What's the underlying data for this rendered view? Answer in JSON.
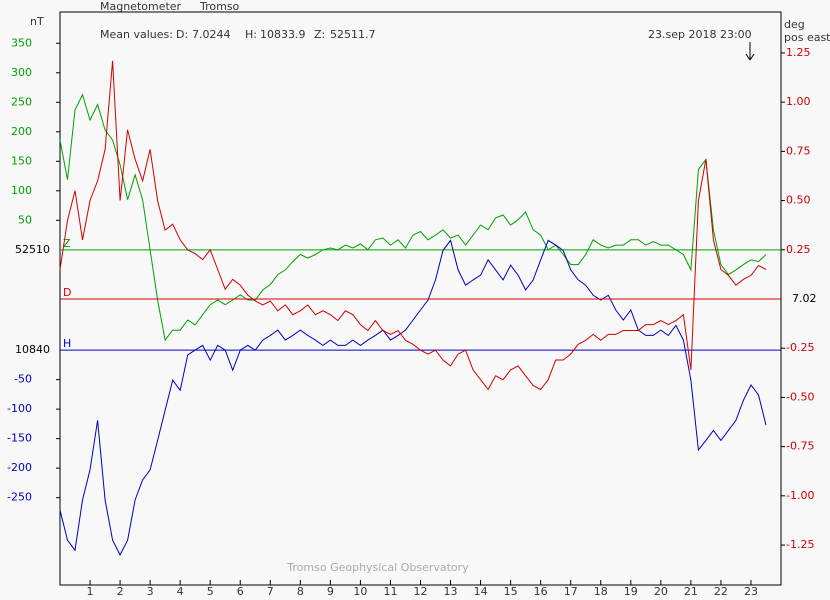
{
  "chart_data": {
    "type": "line",
    "title": "Magnetometer",
    "station": "Tromso",
    "y_label": "nT",
    "y2_label": [
      "deg",
      "pos east"
    ],
    "timestamp": "23.sep 2018 23:00",
    "footer": "Tromso Geophysical Observatory",
    "mean_values": {
      "label": "Mean values:",
      "items": [
        {
          "name": "D:",
          "value": 7.0244
        },
        {
          "name": "H:",
          "value": 10833.9
        },
        {
          "name": "Z:",
          "value": 52511.7
        }
      ]
    },
    "xlim": [
      0,
      24
    ],
    "xticks": [
      1,
      2,
      3,
      4,
      5,
      6,
      7,
      8,
      9,
      10,
      11,
      12,
      13,
      14,
      15,
      16,
      17,
      18,
      19,
      20,
      21,
      22,
      23
    ],
    "x": [
      0,
      0.25,
      0.5,
      0.75,
      1,
      1.25,
      1.5,
      1.75,
      2,
      2.25,
      2.5,
      2.75,
      3,
      3.25,
      3.5,
      3.75,
      4,
      4.25,
      4.5,
      4.75,
      5,
      5.25,
      5.5,
      5.75,
      6,
      6.25,
      6.5,
      6.75,
      7,
      7.25,
      7.5,
      7.75,
      8,
      8.25,
      8.5,
      8.75,
      9,
      9.25,
      9.5,
      9.75,
      10,
      10.25,
      10.5,
      10.75,
      11,
      11.25,
      11.5,
      11.75,
      12,
      12.25,
      12.5,
      12.75,
      13,
      13.25,
      13.5,
      13.75,
      14,
      14.25,
      14.5,
      14.75,
      15,
      15.25,
      15.5,
      15.75,
      16,
      16.25,
      16.5,
      16.75,
      17,
      17.25,
      17.5,
      17.75,
      18,
      18.25,
      18.5,
      18.75,
      19,
      19.25,
      19.5,
      19.75,
      20,
      20.25,
      20.5,
      20.75,
      21,
      21.25,
      21.5,
      21.75,
      22,
      22.25,
      22.5,
      22.75,
      23,
      23.25,
      23.5
    ],
    "series": [
      {
        "name": "Z",
        "color": "#00a000",
        "axis": "y",
        "baseline": 52510,
        "ylim": [
          -568,
          403
        ],
        "yticks": [
          50,
          100,
          150,
          200,
          250,
          300,
          350
        ],
        "values": [
          186,
          119,
          237,
          263,
          220,
          246,
          203,
          186,
          144,
          85,
          127,
          85,
          0,
          -85,
          -153,
          -136,
          -136,
          -119,
          -127,
          -110,
          -93,
          -85,
          -93,
          -85,
          -76,
          -85,
          -85,
          -68,
          -59,
          -42,
          -34,
          -20,
          -8,
          -14,
          -8,
          0,
          3,
          0,
          8,
          3,
          10,
          0,
          17,
          20,
          8,
          17,
          3,
          25,
          31,
          17,
          25,
          34,
          20,
          25,
          8,
          25,
          42,
          34,
          54,
          59,
          42,
          51,
          64,
          34,
          25,
          0,
          8,
          -8,
          -25,
          -25,
          -8,
          17,
          8,
          3,
          8,
          8,
          17,
          17,
          8,
          14,
          8,
          8,
          0,
          -8,
          -34,
          136,
          153,
          34,
          -25,
          -42,
          -34,
          -25,
          -17,
          -20,
          -8
        ]
      },
      {
        "name": "H",
        "color": "#0000c0",
        "axis": "y",
        "baseline": 10840,
        "ylim": [
          -398,
          573
        ],
        "yticks": [
          -50,
          -100,
          -150,
          -200,
          -250
        ],
        "values": [
          -271,
          -322,
          -339,
          -254,
          -203,
          -119,
          -254,
          -322,
          -347,
          -322,
          -254,
          -220,
          -203,
          -153,
          -102,
          -51,
          -68,
          -8,
          0,
          8,
          -17,
          8,
          0,
          -34,
          0,
          8,
          0,
          17,
          25,
          34,
          17,
          25,
          34,
          25,
          17,
          8,
          17,
          8,
          8,
          17,
          8,
          17,
          25,
          34,
          17,
          25,
          34,
          51,
          68,
          85,
          119,
          169,
          186,
          136,
          110,
          119,
          127,
          153,
          136,
          119,
          144,
          127,
          102,
          119,
          153,
          186,
          178,
          169,
          136,
          119,
          110,
          93,
          85,
          93,
          68,
          51,
          68,
          34,
          25,
          25,
          34,
          25,
          42,
          17,
          -51,
          -169,
          -153,
          -136,
          -153,
          -136,
          -119,
          -85,
          -59,
          -76,
          -127
        ]
      },
      {
        "name": "D",
        "color": "#d00000",
        "axis": "y2",
        "baseline": 7.02,
        "ylim": [
          -1.453,
          1.458
        ],
        "yticks": [
          1.25,
          {
            "value": 1,
            "label": "1.00"
          },
          0.75,
          {
            "value": 0.5,
            "label": "0.50"
          },
          0.25,
          -0.25,
          {
            "value": -0.5,
            "label": "-0.50"
          },
          -0.75,
          {
            "value": -1,
            "label": "-1.00"
          },
          -1.25
        ],
        "values": [
          0.15,
          0.4,
          0.55,
          0.3,
          0.5,
          0.6,
          0.76,
          1.21,
          0.5,
          0.86,
          0.71,
          0.6,
          0.76,
          0.5,
          0.35,
          0.38,
          0.3,
          0.25,
          0.23,
          0.2,
          0.25,
          0.15,
          0.05,
          0.1,
          0.07,
          0.02,
          -0.01,
          -0.03,
          -0.01,
          -0.06,
          -0.03,
          -0.08,
          -0.06,
          -0.03,
          -0.08,
          -0.06,
          -0.08,
          -0.11,
          -0.06,
          -0.08,
          -0.13,
          -0.16,
          -0.11,
          -0.16,
          -0.18,
          -0.16,
          -0.21,
          -0.23,
          -0.26,
          -0.28,
          -0.26,
          -0.31,
          -0.34,
          -0.28,
          -0.26,
          -0.36,
          -0.41,
          -0.46,
          -0.39,
          -0.41,
          -0.36,
          -0.34,
          -0.39,
          -0.44,
          -0.46,
          -0.41,
          -0.31,
          -0.31,
          -0.28,
          -0.23,
          -0.21,
          -0.18,
          -0.21,
          -0.18,
          -0.18,
          -0.16,
          -0.16,
          -0.16,
          -0.13,
          -0.13,
          -0.11,
          -0.13,
          -0.11,
          -0.08,
          -0.36,
          0.5,
          0.71,
          0.3,
          0.15,
          0.12,
          0.07,
          0.1,
          0.12,
          0.17,
          0.15
        ]
      }
    ]
  }
}
